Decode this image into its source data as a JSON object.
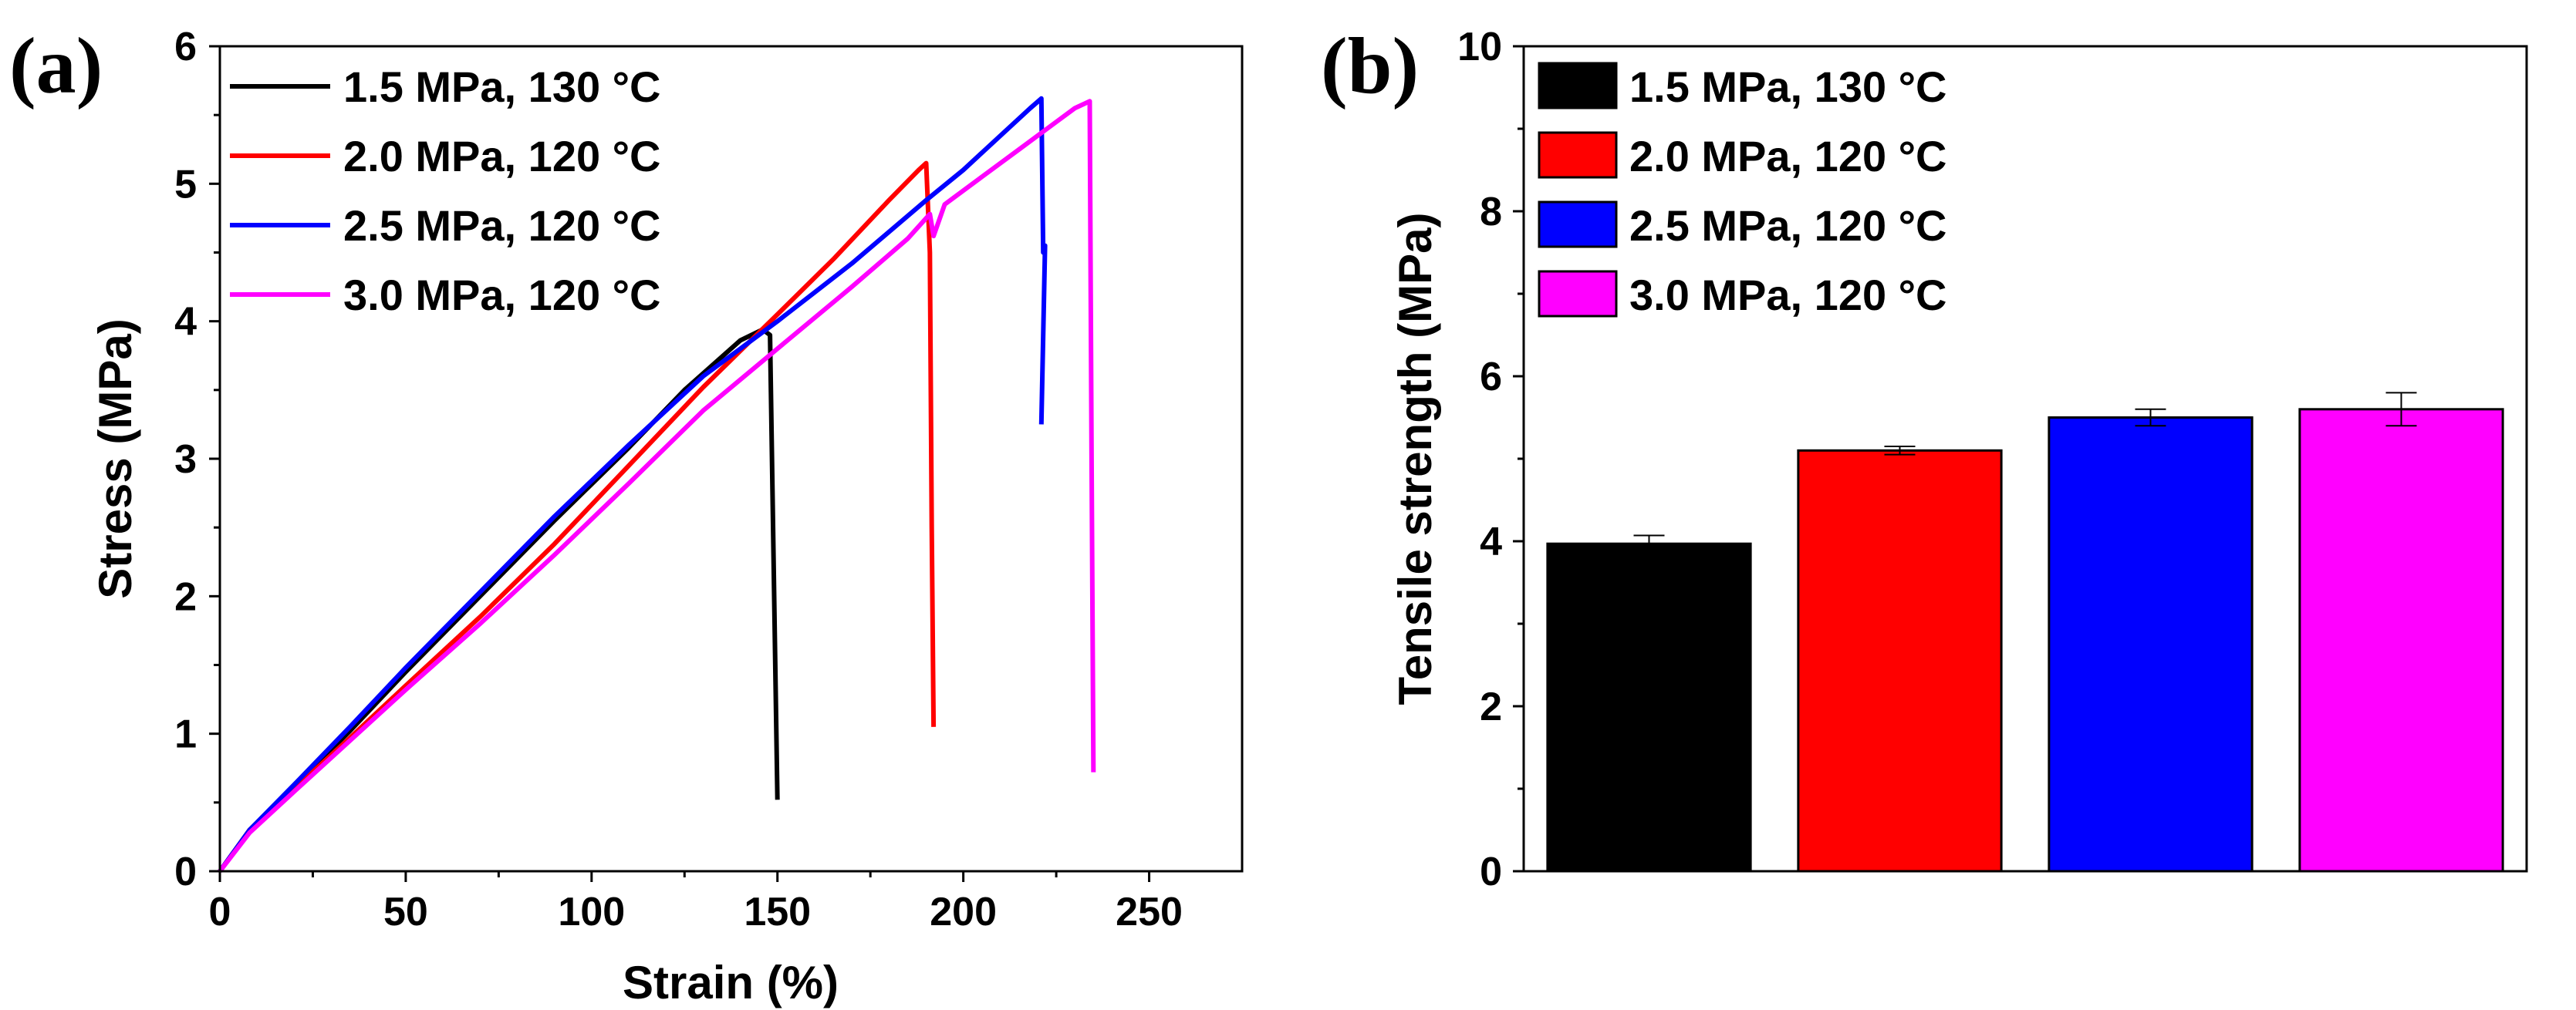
{
  "chart_data": [
    {
      "type": "line",
      "panel_label": "(a)",
      "xlabel": "Strain (%)",
      "ylabel": "Stress (MPa)",
      "xlim": [
        0,
        275
      ],
      "ylim": [
        0,
        6
      ],
      "xticks": [
        0,
        50,
        100,
        150,
        200,
        250
      ],
      "yticks": [
        0,
        1,
        2,
        3,
        4,
        5,
        6
      ],
      "legend_position": "top-left",
      "series": [
        {
          "name": "1.5 MPa, 130 °C",
          "color": "#000000",
          "points": [
            [
              0,
              0
            ],
            [
              8,
              0.3
            ],
            [
              20,
              0.62
            ],
            [
              35,
              1.02
            ],
            [
              50,
              1.45
            ],
            [
              70,
              2.0
            ],
            [
              90,
              2.55
            ],
            [
              110,
              3.08
            ],
            [
              125,
              3.5
            ],
            [
              140,
              3.86
            ],
            [
              146,
              3.94
            ],
            [
              148,
              3.9
            ],
            [
              149,
              2.2
            ],
            [
              150,
              0.52
            ]
          ]
        },
        {
          "name": "2.0 MPa, 120 °C",
          "color": "#ff0000",
          "points": [
            [
              0,
              0
            ],
            [
              8,
              0.3
            ],
            [
              20,
              0.6
            ],
            [
              35,
              0.97
            ],
            [
              50,
              1.35
            ],
            [
              70,
              1.85
            ],
            [
              90,
              2.38
            ],
            [
              110,
              2.95
            ],
            [
              130,
              3.52
            ],
            [
              150,
              4.05
            ],
            [
              165,
              4.45
            ],
            [
              180,
              4.88
            ],
            [
              188,
              5.1
            ],
            [
              190,
              5.15
            ],
            [
              191,
              4.5
            ],
            [
              191.5,
              2.5
            ],
            [
              192,
              1.05
            ]
          ]
        },
        {
          "name": "2.5 MPa, 120 °C",
          "color": "#0000ff",
          "points": [
            [
              0,
              0
            ],
            [
              8,
              0.3
            ],
            [
              20,
              0.63
            ],
            [
              35,
              1.05
            ],
            [
              50,
              1.48
            ],
            [
              70,
              2.03
            ],
            [
              90,
              2.58
            ],
            [
              110,
              3.1
            ],
            [
              130,
              3.6
            ],
            [
              150,
              4.0
            ],
            [
              170,
              4.42
            ],
            [
              190,
              4.88
            ],
            [
              200,
              5.1
            ],
            [
              210,
              5.35
            ],
            [
              218,
              5.55
            ],
            [
              221,
              5.62
            ],
            [
              221.5,
              4.5
            ],
            [
              222,
              4.55
            ],
            [
              221,
              3.25
            ]
          ]
        },
        {
          "name": "3.0 MPa, 120 °C",
          "color": "#ff00ff",
          "points": [
            [
              0,
              0
            ],
            [
              8,
              0.28
            ],
            [
              20,
              0.58
            ],
            [
              35,
              0.95
            ],
            [
              50,
              1.32
            ],
            [
              70,
              1.8
            ],
            [
              90,
              2.3
            ],
            [
              110,
              2.82
            ],
            [
              130,
              3.35
            ],
            [
              150,
              3.8
            ],
            [
              170,
              4.25
            ],
            [
              185,
              4.6
            ],
            [
              191,
              4.78
            ],
            [
              192,
              4.62
            ],
            [
              195,
              4.85
            ],
            [
              205,
              5.05
            ],
            [
              215,
              5.25
            ],
            [
              225,
              5.45
            ],
            [
              230,
              5.55
            ],
            [
              234,
              5.6
            ],
            [
              234.5,
              3.0
            ],
            [
              235,
              0.72
            ]
          ]
        }
      ]
    },
    {
      "type": "bar",
      "panel_label": "(b)",
      "xlabel": "",
      "ylabel": "Tensile strength (MPa)",
      "ylim": [
        0,
        10
      ],
      "yticks": [
        0,
        2,
        4,
        6,
        8,
        10
      ],
      "legend_position": "top-left",
      "categories": [
        "1.5 MPa, 130 °C",
        "2.0 MPa, 120 °C",
        "2.5 MPa, 120 °C",
        "3.0 MPa, 120 °C"
      ],
      "values": [
        3.97,
        5.1,
        5.5,
        5.6
      ],
      "errors": [
        0.1,
        0.05,
        0.1,
        0.2
      ],
      "colors": [
        "#000000",
        "#ff0000",
        "#0000ff",
        "#ff00ff"
      ]
    }
  ]
}
